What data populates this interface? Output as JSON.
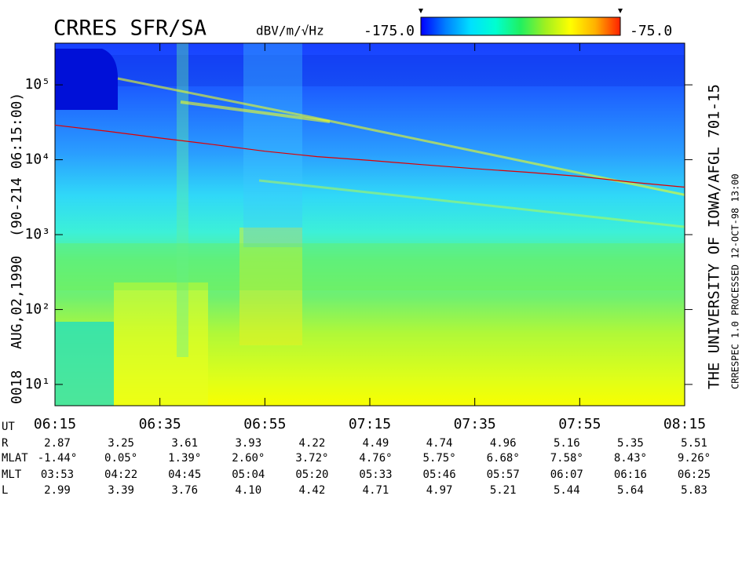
{
  "chart_data": {
    "type": "spectrogram",
    "title": "CRRES SFR/SA",
    "side_text": {
      "date_id": "0018",
      "date": "AUG,02,1990",
      "orbit": "(90-214 06:15:00)",
      "institution": "THE UNIVERSITY OF IOWA/AFGL 701-15",
      "software": "CRRESPEC 1.0",
      "processed": "PROCESSED 12-OCT-98 13:00"
    },
    "colorbar": {
      "label": "dBV/m/√Hz",
      "range": [
        {
          "value": -175,
          "label": "-175.0"
        },
        {
          "value": -75,
          "label": "-75.0"
        }
      ],
      "colors": [
        "#0000ff",
        "#0080ff",
        "#00e0ff",
        "#00ffd0",
        "#20f060",
        "#a0f020",
        "#ffff00",
        "#ffb000",
        "#ff2000"
      ]
    },
    "yscale": "log",
    "ylim": [
      5.2,
      360000
    ],
    "yticks": [
      {
        "value": 10,
        "label": "10¹"
      },
      {
        "value": 100,
        "label": "10²"
      },
      {
        "value": 1000,
        "label": "10³"
      },
      {
        "value": 10000,
        "label": "10⁴"
      },
      {
        "value": 100000,
        "label": "10⁵"
      }
    ],
    "x_label": "UT",
    "xlim": [
      375,
      495
    ],
    "xticks": [
      {
        "value": 375,
        "label": "06:15"
      },
      {
        "value": 395,
        "label": "06:35"
      },
      {
        "value": 415,
        "label": "06:55"
      },
      {
        "value": 435,
        "label": "07:15"
      },
      {
        "value": 455,
        "label": "07:35"
      },
      {
        "value": 475,
        "label": "07:55"
      },
      {
        "value": 495,
        "label": "08:15"
      }
    ],
    "x": [
      375,
      385,
      395,
      405,
      415,
      425,
      435,
      445,
      455,
      465,
      475,
      485,
      495
    ],
    "series": [
      {
        "color": "#e00000",
        "values": [
          29000,
          24000,
          19500,
          16000,
          13000,
          11000,
          9800,
          8600,
          7600,
          6800,
          6000,
          5000,
          4300
        ]
      }
    ]
  },
  "ephemeris": {
    "rows": [
      {
        "label": "R",
        "values": [
          "2.87",
          "3.25",
          "3.61",
          "3.93",
          "4.22",
          "4.49",
          "4.74",
          "4.96",
          "5.16",
          "5.35",
          "5.51"
        ]
      },
      {
        "label": "MLAT",
        "values": [
          "-1.44°",
          "0.05°",
          "1.39°",
          "2.60°",
          "3.72°",
          "4.76°",
          "5.75°",
          "6.68°",
          "7.58°",
          "8.43°",
          "9.26°"
        ]
      },
      {
        "label": "MLT",
        "values": [
          "03:53",
          "04:22",
          "04:45",
          "05:04",
          "05:20",
          "05:33",
          "05:46",
          "05:57",
          "06:07",
          "06:16",
          "06:25"
        ]
      },
      {
        "label": "L",
        "values": [
          "2.99",
          "3.39",
          "3.76",
          "4.10",
          "4.42",
          "4.71",
          "4.97",
          "5.21",
          "5.44",
          "5.64",
          "5.83"
        ]
      }
    ]
  }
}
